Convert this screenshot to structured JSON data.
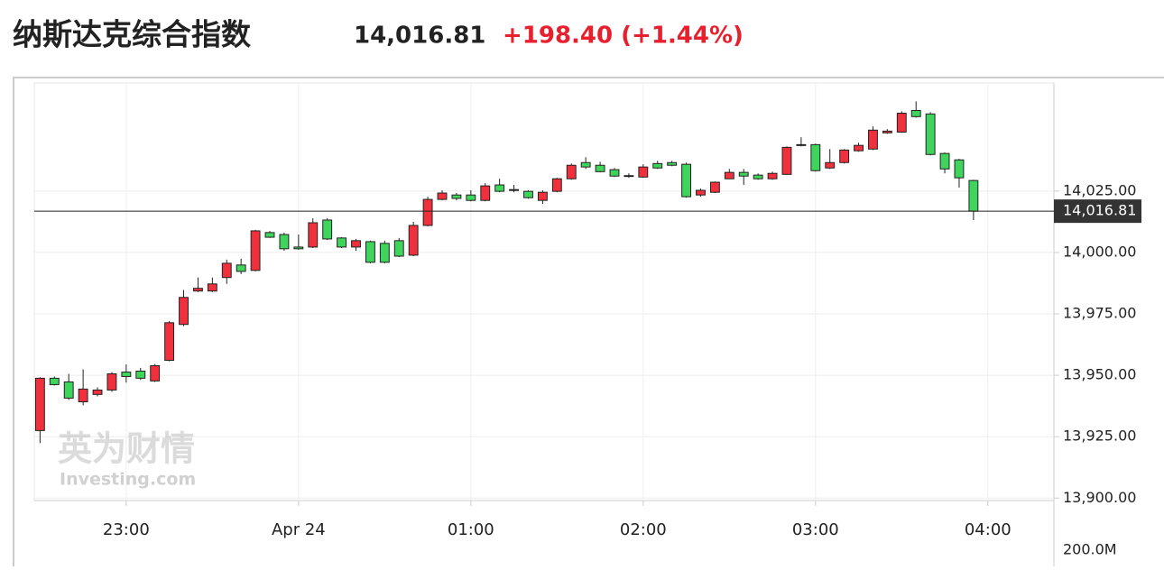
{
  "header": {
    "title": "纳斯达克综合指数",
    "change": "+198.40 (+1.44%)"
  },
  "chart_data": {
    "type": "candlestick",
    "categories": [
      null,
      null,
      null,
      null,
      null,
      null,
      null,
      null,
      null,
      null,
      null,
      null,
      null,
      null,
      null,
      null,
      null,
      null,
      null,
      null,
      null,
      null,
      null,
      null,
      null,
      null,
      null,
      null,
      null,
      null,
      null,
      null,
      null,
      null,
      null,
      null,
      null,
      null,
      null,
      null,
      null,
      null,
      null,
      null,
      null,
      null,
      null,
      null,
      null,
      null,
      null,
      null,
      null,
      null,
      null,
      null,
      null,
      null,
      null,
      null,
      null,
      null,
      null,
      null,
      null,
      null
    ],
    "open": [
      13927.5,
      13948.8,
      13947.3,
      13939.2,
      13942.2,
      13944.0,
      13951.3,
      13951.7,
      13947.7,
      13956.1,
      13970.7,
      13984.3,
      13984.3,
      13989.8,
      13994.9,
      13992.7,
      14008.1,
      14007.3,
      14002.2,
      14002.2,
      14013.2,
      14005.9,
      14002.2,
      14004.4,
      14003.7,
      14004.8,
      13998.9,
      14011.0,
      14021.6,
      14023.4,
      14023.4,
      14021.2,
      14027.5,
      14025.4,
      14024.9,
      14021.2,
      14024.9,
      14030.0,
      14036.6,
      14035.5,
      14033.7,
      14031.3,
      14030.7,
      14036.2,
      14036.6,
      14035.9,
      14023.4,
      14024.5,
      14030.0,
      14032.6,
      14031.5,
      14030.0,
      14031.8,
      14043.6,
      14043.9,
      14034.4,
      14036.6,
      14041.4,
      14042.1,
      14048.7,
      14049.0,
      14057.8,
      14056.4,
      14040.3,
      14037.7,
      14029.3
    ],
    "high": [
      13949.2,
      13949.5,
      13950.6,
      13952.4,
      13945.1,
      13951.3,
      13954.4,
      13953.0,
      13954.6,
      13972.1,
      13984.7,
      13989.8,
      13989.8,
      13997.1,
      13997.5,
      14009.2,
      14008.8,
      14008.1,
      14007.3,
      14013.9,
      14013.9,
      14006.2,
      14005.5,
      14004.8,
      14004.8,
      14005.9,
      14012.5,
      14022.7,
      14025.3,
      14024.2,
      14025.3,
      14028.2,
      14030.0,
      14027.5,
      14025.3,
      14025.3,
      14030.4,
      14036.2,
      14038.8,
      14036.9,
      14034.4,
      14032.2,
      14035.9,
      14037.3,
      14037.3,
      14036.6,
      14026.0,
      14028.9,
      14034.0,
      14034.0,
      14032.2,
      14032.9,
      14043.2,
      14046.9,
      14044.3,
      14042.1,
      14042.1,
      14044.7,
      14051.3,
      14050.2,
      14057.5,
      14061.5,
      14057.1,
      14040.7,
      14038.1,
      14029.6
    ],
    "low": [
      13922.4,
      13945.8,
      13940.0,
      13937.8,
      13941.4,
      13943.3,
      13947.0,
      13948.1,
      13947.3,
      13955.7,
      13970.0,
      13983.9,
      13983.9,
      13987.2,
      13991.2,
      13992.3,
      14005.9,
      14000.7,
      14001.1,
      14001.8,
      14005.1,
      14001.8,
      14000.7,
      13995.6,
      13995.6,
      13998.1,
      13998.5,
      14010.6,
      14021.2,
      14021.2,
      14020.8,
      14020.8,
      14024.5,
      14024.5,
      14021.9,
      14019.8,
      14024.5,
      14029.6,
      14034.0,
      14032.6,
      14030.7,
      14030.4,
      14030.4,
      14034.0,
      14035.1,
      14022.3,
      14022.7,
      14024.2,
      14030.4,
      14027.5,
      14029.6,
      14029.6,
      14031.5,
      14043.2,
      14032.9,
      14034.0,
      14036.2,
      14041.0,
      14041.7,
      14048.3,
      14048.7,
      14054.9,
      14039.5,
      14032.2,
      14026.4,
      14013.2
    ],
    "close": [
      13948.8,
      13946.2,
      13940.7,
      13944.4,
      13944.0,
      13950.6,
      13949.5,
      13948.8,
      13953.9,
      13971.4,
      13981.7,
      13985.4,
      13987.2,
      13995.6,
      13992.3,
      14008.8,
      14006.2,
      14001.5,
      14001.5,
      14012.1,
      14005.5,
      14002.2,
      14004.8,
      13996.0,
      13996.0,
      13998.5,
      14011.0,
      14021.6,
      14024.2,
      14022.0,
      14021.2,
      14027.1,
      14024.9,
      14025.6,
      14022.3,
      14024.5,
      14030.0,
      14035.5,
      14034.8,
      14032.9,
      14031.1,
      14031.1,
      14034.8,
      14034.4,
      14035.5,
      14022.7,
      14025.3,
      14028.6,
      14032.6,
      14031.1,
      14030.0,
      14032.2,
      14042.8,
      14043.9,
      14033.3,
      14036.6,
      14041.7,
      14043.6,
      14049.8,
      14049.4,
      14056.7,
      14055.3,
      14039.9,
      14034.0,
      14030.4,
      14016.81
    ],
    "up_color": "#f0303c",
    "down_color": "#3fd45b",
    "last_price": {
      "value": 14016.81,
      "label": "14,016.81"
    },
    "xlim": [
      -0.4,
      70.6
    ],
    "xticks": [
      {
        "value": 6,
        "label": "23:00"
      },
      {
        "value": 18,
        "label": "Apr 24"
      },
      {
        "value": 30,
        "label": "01:00"
      },
      {
        "value": 42,
        "label": "02:00"
      },
      {
        "value": 54,
        "label": "03:00"
      },
      {
        "value": 66,
        "label": "04:00"
      }
    ],
    "ylim": [
      13899,
      14069
    ],
    "yticks": [
      {
        "value": 13900,
        "label": "13,900.00"
      },
      {
        "value": 13925,
        "label": "13,925.00"
      },
      {
        "value": 13950,
        "label": "13,950.00"
      },
      {
        "value": 13975,
        "label": "13,975.00"
      },
      {
        "value": 14000,
        "label": "14,000.00"
      },
      {
        "value": 14025,
        "label": "14,025.00"
      }
    ],
    "grid": true,
    "volume_tick": "200.0M",
    "watermark": {
      "title": "英为财情",
      "subtitle": "Investing.com"
    }
  }
}
